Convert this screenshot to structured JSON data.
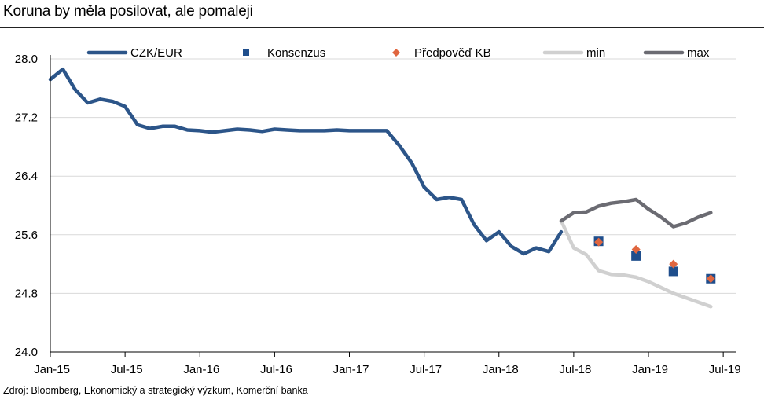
{
  "title": "Koruna by měla posilovat, ale pomaleji",
  "footer": "Zdroj: Bloomberg, Ekonomický a strategický výzkum, Komerční banka",
  "colors": {
    "czk": "#2c5589",
    "konsenzus": "#1f4e8c",
    "predpoved": "#e0663f",
    "min": "#d0d0d0",
    "max": "#6b6b72",
    "grid": "#d9d9d9"
  },
  "chart_data": {
    "type": "line",
    "ylim": [
      24.0,
      28.0
    ],
    "y_ticks": [
      "24.0",
      "24.8",
      "25.6",
      "26.4",
      "27.2",
      "28.0"
    ],
    "x_ticks": [
      "Jan-15",
      "Jul-15",
      "Jan-16",
      "Jul-16",
      "Jan-17",
      "Jul-17",
      "Jan-18",
      "Jul-18",
      "Jan-19",
      "Jul-19"
    ],
    "legend": [
      "CZK/EUR",
      "Konsenzus",
      "Předpověď KB",
      "min",
      "max"
    ],
    "series": [
      {
        "name": "CZK/EUR",
        "x": [
          "2015-01",
          "2015-02",
          "2015-03",
          "2015-04",
          "2015-05",
          "2015-06",
          "2015-07",
          "2015-08",
          "2015-09",
          "2015-10",
          "2015-11",
          "2015-12",
          "2016-01",
          "2016-02",
          "2016-03",
          "2016-04",
          "2016-05",
          "2016-06",
          "2016-07",
          "2016-08",
          "2016-09",
          "2016-10",
          "2016-11",
          "2016-12",
          "2017-01",
          "2017-02",
          "2017-03",
          "2017-04",
          "2017-05",
          "2017-06",
          "2017-07",
          "2017-08",
          "2017-09",
          "2017-10",
          "2017-11",
          "2017-12",
          "2018-01",
          "2018-02",
          "2018-03",
          "2018-04",
          "2018-05",
          "2018-06"
        ],
        "values": [
          27.72,
          27.86,
          27.58,
          27.4,
          27.45,
          27.42,
          27.35,
          27.1,
          27.05,
          27.08,
          27.08,
          27.03,
          27.02,
          27.0,
          27.02,
          27.04,
          27.03,
          27.01,
          27.04,
          27.03,
          27.02,
          27.02,
          27.02,
          27.03,
          27.02,
          27.02,
          27.02,
          27.02,
          26.82,
          26.58,
          26.25,
          26.08,
          26.11,
          26.08,
          25.74,
          25.52,
          25.64,
          25.44,
          25.34,
          25.42,
          25.37,
          25.64
        ]
      },
      {
        "name": "min",
        "x": [
          "2018-06",
          "2018-07",
          "2018-08",
          "2018-09",
          "2018-10",
          "2018-11",
          "2018-12",
          "2019-01",
          "2019-02",
          "2019-03",
          "2019-04",
          "2019-05",
          "2019-06"
        ],
        "values": [
          25.79,
          25.42,
          25.33,
          25.11,
          25.06,
          25.05,
          25.02,
          24.96,
          24.88,
          24.8,
          24.74,
          24.68,
          24.62
        ]
      },
      {
        "name": "max",
        "x": [
          "2018-06",
          "2018-07",
          "2018-08",
          "2018-09",
          "2018-10",
          "2018-11",
          "2018-12",
          "2019-01",
          "2019-02",
          "2019-03",
          "2019-04",
          "2019-05",
          "2019-06"
        ],
        "values": [
          25.79,
          25.9,
          25.91,
          25.99,
          26.03,
          26.05,
          26.08,
          25.95,
          25.84,
          25.71,
          25.76,
          25.84,
          25.9
        ]
      },
      {
        "name": "Konsenzus",
        "x": [
          "2018-09",
          "2018-12",
          "2019-03",
          "2019-06"
        ],
        "values": [
          25.51,
          25.31,
          25.1,
          25.0
        ]
      },
      {
        "name": "Předpověď KB",
        "x": [
          "2018-09",
          "2018-12",
          "2019-03",
          "2019-06"
        ],
        "values": [
          25.5,
          25.4,
          25.2,
          25.0
        ]
      }
    ]
  }
}
